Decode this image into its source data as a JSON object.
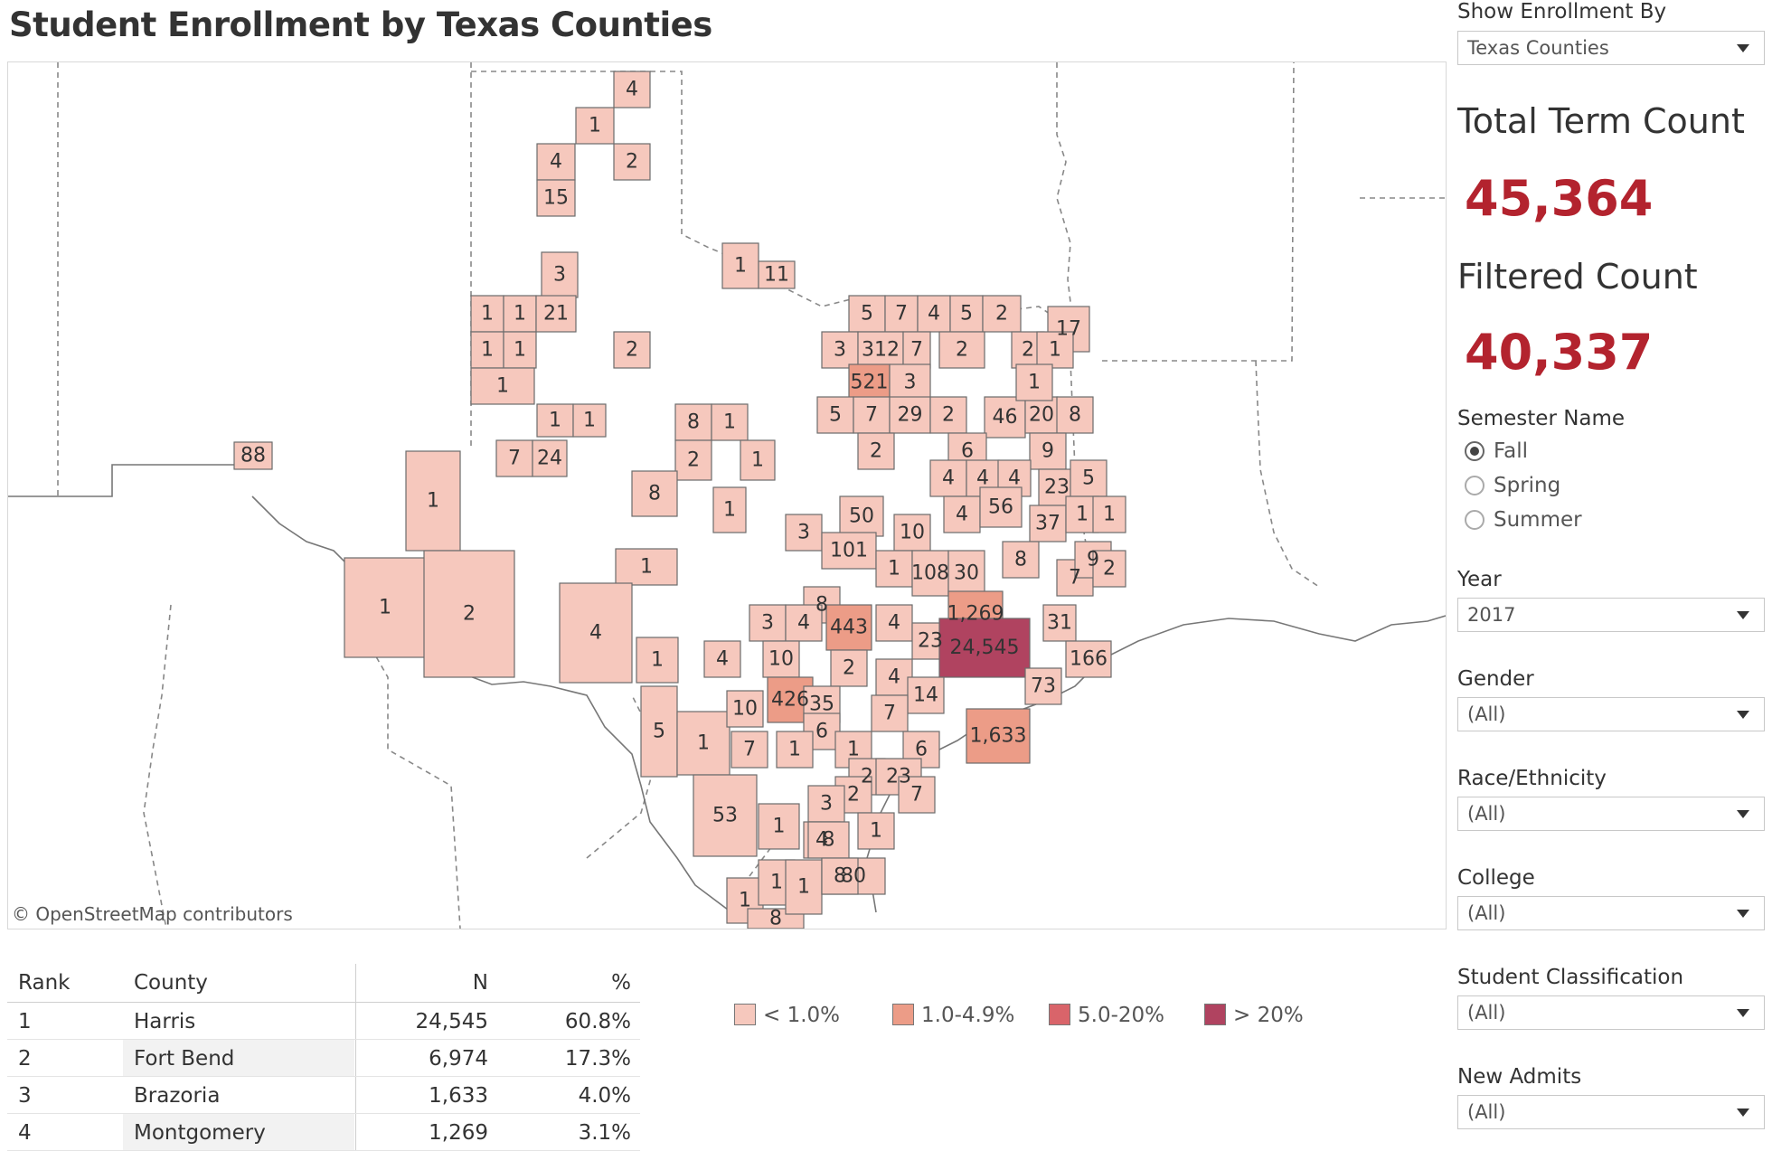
{
  "title": "Student Enrollment by Texas Counties",
  "map": {
    "attribution": "© OpenStreetMap contributors",
    "county_fill": {
      "lt1": "#f6c8bd",
      "p1to5": "#ec9c87",
      "p5to20": "#d9646a",
      "gt20": "#b04360"
    },
    "counties": [
      {
        "label": "4"
      },
      {
        "label": "1"
      },
      {
        "label": "4"
      },
      {
        "label": "2"
      },
      {
        "label": "15"
      },
      {
        "label": "1"
      },
      {
        "label": "11"
      },
      {
        "label": "3"
      },
      {
        "label": "1"
      },
      {
        "label": "1"
      },
      {
        "label": "21"
      },
      {
        "label": "1"
      },
      {
        "label": "1"
      },
      {
        "label": "2"
      },
      {
        "label": "1"
      },
      {
        "label": "1"
      },
      {
        "label": "1"
      },
      {
        "label": "8"
      },
      {
        "label": "1"
      },
      {
        "label": "7"
      },
      {
        "label": "24"
      },
      {
        "label": "2"
      },
      {
        "label": "1"
      },
      {
        "label": "8"
      },
      {
        "label": "1"
      },
      {
        "label": "88"
      },
      {
        "label": "1"
      },
      {
        "label": "1"
      },
      {
        "label": "2"
      },
      {
        "label": "1"
      },
      {
        "label": "4"
      },
      {
        "label": "1"
      },
      {
        "label": "5"
      },
      {
        "label": "1"
      },
      {
        "label": "53"
      },
      {
        "label": "1"
      },
      {
        "label": "1"
      },
      {
        "label": "8"
      },
      {
        "label": "1"
      },
      {
        "label": "5"
      },
      {
        "label": "7"
      },
      {
        "label": "4"
      },
      {
        "label": "5"
      },
      {
        "label": "2"
      },
      {
        "label": "17"
      },
      {
        "label": "3"
      },
      {
        "label": "312"
      },
      {
        "label": "7"
      },
      {
        "label": "2"
      },
      {
        "label": "2"
      },
      {
        "label": "1"
      },
      {
        "label": "521"
      },
      {
        "label": "3"
      },
      {
        "label": "5"
      },
      {
        "label": "7"
      },
      {
        "label": "29"
      },
      {
        "label": "2"
      },
      {
        "label": "46"
      },
      {
        "label": "20"
      },
      {
        "label": "8"
      },
      {
        "label": "1"
      },
      {
        "label": "2"
      },
      {
        "label": "6"
      },
      {
        "label": "9"
      },
      {
        "label": "4"
      },
      {
        "label": "4"
      },
      {
        "label": "4"
      },
      {
        "label": "23"
      },
      {
        "label": "5"
      },
      {
        "label": "50"
      },
      {
        "label": "10"
      },
      {
        "label": "4"
      },
      {
        "label": "56"
      },
      {
        "label": "37"
      },
      {
        "label": "1"
      },
      {
        "label": "1"
      },
      {
        "label": "3"
      },
      {
        "label": "101"
      },
      {
        "label": "1"
      },
      {
        "label": "108"
      },
      {
        "label": "30"
      },
      {
        "label": "8"
      },
      {
        "label": "7"
      },
      {
        "label": "9"
      },
      {
        "label": "2"
      },
      {
        "label": "8"
      },
      {
        "label": "443"
      },
      {
        "label": "1,269"
      },
      {
        "label": "31"
      },
      {
        "label": "3"
      },
      {
        "label": "4"
      },
      {
        "label": "4"
      },
      {
        "label": "23"
      },
      {
        "label": "24,545"
      },
      {
        "label": "166"
      },
      {
        "label": "4"
      },
      {
        "label": "10"
      },
      {
        "label": "2"
      },
      {
        "label": "4"
      },
      {
        "label": "73"
      },
      {
        "label": "10"
      },
      {
        "label": "426"
      },
      {
        "label": "35"
      },
      {
        "label": "14"
      },
      {
        "label": "7"
      },
      {
        "label": "1,633"
      },
      {
        "label": "6"
      },
      {
        "label": "1"
      },
      {
        "label": "7"
      },
      {
        "label": "1"
      },
      {
        "label": "2"
      },
      {
        "label": "6"
      },
      {
        "label": "23"
      },
      {
        "label": "2"
      },
      {
        "label": "3"
      },
      {
        "label": "7"
      },
      {
        "label": "4"
      },
      {
        "label": "80"
      },
      {
        "label": "8"
      },
      {
        "label": "1"
      },
      {
        "label": "1"
      },
      {
        "label": "8"
      }
    ]
  },
  "panel": {
    "show_by": {
      "label": "Show Enrollment By",
      "value": "Texas Counties"
    },
    "total": {
      "label": "Total Term Count",
      "value": "45,364"
    },
    "filtered": {
      "label": "Filtered Count",
      "value": "40,337"
    },
    "semester": {
      "label": "Semester Name",
      "options": [
        "Fall",
        "Spring",
        "Summer"
      ],
      "selected": "Fall"
    },
    "year": {
      "label": "Year",
      "value": "2017"
    },
    "gender": {
      "label": "Gender",
      "value": "(All)"
    },
    "race": {
      "label": "Race/Ethnicity",
      "value": "(All)"
    },
    "college": {
      "label": "College",
      "value": "(All)"
    },
    "classification": {
      "label": "Student Classification",
      "value": "(All)"
    },
    "new_admits": {
      "label": "New Admits",
      "value": "(All)"
    }
  },
  "table": {
    "headers": {
      "rank": "Rank",
      "county": "County",
      "n": "N",
      "pct": "%"
    },
    "rows": [
      {
        "rank": "1",
        "county": "Harris",
        "n": "24,545",
        "pct": "60.8%"
      },
      {
        "rank": "2",
        "county": "Fort Bend",
        "n": "6,974",
        "pct": "17.3%"
      },
      {
        "rank": "3",
        "county": "Brazoria",
        "n": "1,633",
        "pct": "4.0%"
      },
      {
        "rank": "4",
        "county": "Montgomery",
        "n": "1,269",
        "pct": "3.1%"
      }
    ]
  },
  "legend": {
    "items": [
      {
        "label": "< 1.0%",
        "color": "#f6c8bd"
      },
      {
        "label": "1.0-4.9%",
        "color": "#ec9c87"
      },
      {
        "label": "5.0-20%",
        "color": "#d9646a"
      },
      {
        "label": "> 20%",
        "color": "#b04360"
      }
    ]
  }
}
